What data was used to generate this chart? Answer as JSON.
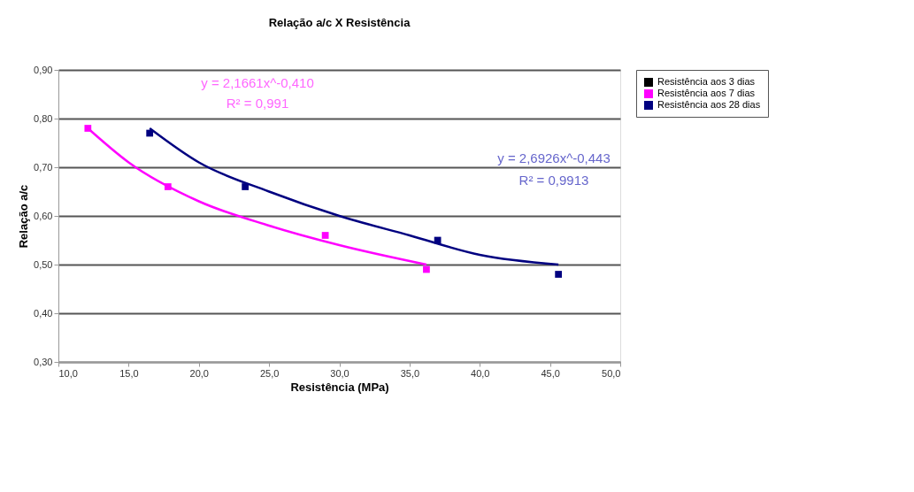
{
  "chart_data": {
    "type": "scatter",
    "title": "Relação a/c X Resistência",
    "xlabel": "Resistência (MPa)",
    "ylabel": "Relação a/c",
    "xlim": [
      10,
      50
    ],
    "xticks": [
      {
        "value": 10,
        "label": "10,0"
      },
      {
        "value": 15,
        "label": "15,0"
      },
      {
        "value": 20,
        "label": "20,0"
      },
      {
        "value": 25,
        "label": "25,0"
      },
      {
        "value": 30,
        "label": "30,0"
      },
      {
        "value": 35,
        "label": "35,0"
      },
      {
        "value": 40,
        "label": "40,0"
      },
      {
        "value": 45,
        "label": "45,0"
      },
      {
        "value": 50,
        "label": "50,0"
      }
    ],
    "ylim": [
      0.3,
      0.9
    ],
    "yticks": [
      {
        "value": 0.3,
        "label": "0,30"
      },
      {
        "value": 0.4,
        "label": "0,40"
      },
      {
        "value": 0.5,
        "label": "0,50"
      },
      {
        "value": 0.6,
        "label": "0,60"
      },
      {
        "value": 0.7,
        "label": "0,70"
      },
      {
        "value": 0.8,
        "label": "0,80"
      },
      {
        "value": 0.9,
        "label": "0,90"
      }
    ],
    "grid": "y",
    "legend": "right",
    "marker": "square",
    "series": [
      {
        "type": "line",
        "marker": "none",
        "line_style": "solid",
        "color": "#ff00ff",
        "x": [
          12.1,
          15,
          20,
          25,
          30,
          36.2
        ],
        "values": [
          0.78,
          0.71,
          0.63,
          0.58,
          0.54,
          0.5
        ]
      },
      {
        "type": "line",
        "marker": "none",
        "line_style": "solid",
        "color": "#000080",
        "x": [
          16.5,
          20,
          25,
          30,
          35,
          40,
          45.6
        ],
        "values": [
          0.78,
          0.71,
          0.65,
          0.6,
          0.56,
          0.52,
          0.5
        ]
      },
      {
        "name": "Resistência aos 3 dias",
        "color": "#000000"
      },
      {
        "name": "Resistência aos 7 dias",
        "color": "#ff00ff",
        "x": [
          12.1,
          17.8,
          29.0,
          36.2
        ],
        "values": [
          0.78,
          0.66,
          0.56,
          0.49
        ]
      },
      {
        "name": "Resistência aos 28 dias",
        "color": "#000080",
        "x": [
          16.5,
          23.3,
          37.0,
          45.6
        ],
        "values": [
          0.77,
          0.66,
          0.55,
          0.48
        ]
      }
    ],
    "annotations": [
      "y = 2,1661x^-0,410",
      "R² = 0,991",
      "y = 2,6926x^-0,443",
      "R² = 0,9913"
    ]
  }
}
